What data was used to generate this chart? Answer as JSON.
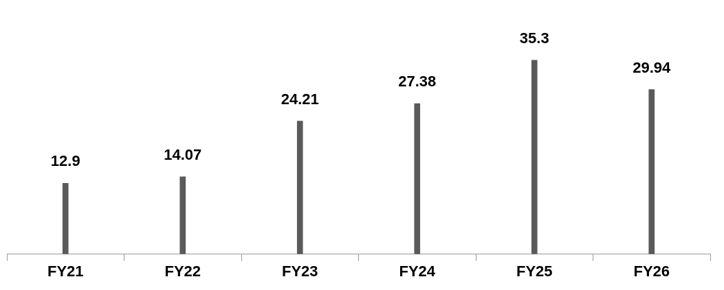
{
  "chart_data": {
    "type": "bar",
    "categories": [
      "FY21",
      "FY22",
      "FY23",
      "FY24",
      "FY25",
      "FY26"
    ],
    "values": [
      12.9,
      14.07,
      24.21,
      27.38,
      35.3,
      29.94
    ],
    "color": "#5a5a5a",
    "data_labels": true,
    "tick_labels": "x",
    "grid": false,
    "legend": false
  }
}
